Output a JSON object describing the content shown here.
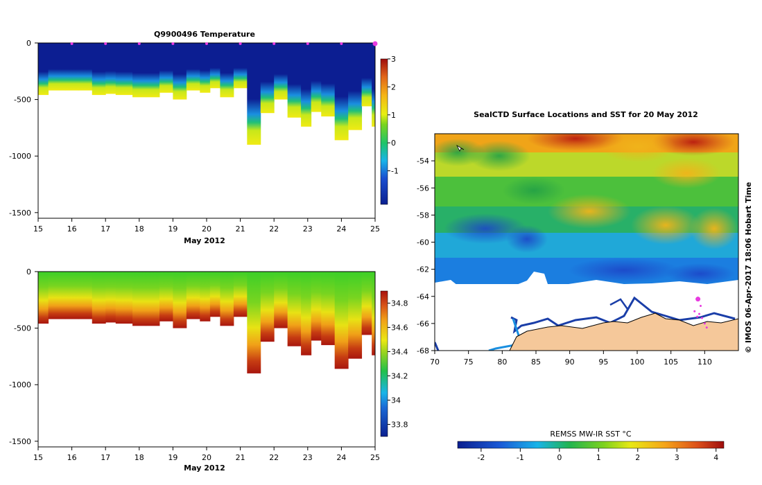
{
  "chart_data": [
    {
      "type": "heatmap",
      "id": "temperature",
      "title": "Q9900496  Temperature",
      "xlabel": "May 2012",
      "ylabel": "",
      "xlim": [
        15,
        25
      ],
      "ylim": [
        -1550,
        0
      ],
      "xticks": [
        "15",
        "16",
        "17",
        "18",
        "19",
        "20",
        "21",
        "22",
        "23",
        "24",
        "25"
      ],
      "yticks": [
        {
          "value": 0,
          "label": "0"
        },
        {
          "value": -500,
          "label": "-500"
        },
        {
          "value": -1000,
          "label": "-1000"
        },
        {
          "value": -1500,
          "label": "-1500"
        }
      ],
      "colorbar": {
        "min": -2.2,
        "max": 3,
        "ticks": [
          "3",
          "2",
          "1",
          "0",
          "-1"
        ],
        "tick_values": [
          3,
          2,
          1,
          0,
          -1
        ]
      },
      "dive_markers_x": [
        16,
        17,
        18,
        19,
        20,
        21,
        22,
        23,
        24,
        25
      ],
      "profiles": [
        {
          "x": 15.0,
          "depth": 460
        },
        {
          "x": 15.3,
          "depth": 420
        },
        {
          "x": 15.8,
          "depth": 420
        },
        {
          "x": 16.2,
          "depth": 420
        },
        {
          "x": 16.6,
          "depth": 460
        },
        {
          "x": 17.0,
          "depth": 450
        },
        {
          "x": 17.3,
          "depth": 460
        },
        {
          "x": 17.8,
          "depth": 480
        },
        {
          "x": 18.2,
          "depth": 480
        },
        {
          "x": 18.6,
          "depth": 440
        },
        {
          "x": 19.0,
          "depth": 500
        },
        {
          "x": 19.4,
          "depth": 420
        },
        {
          "x": 19.8,
          "depth": 440
        },
        {
          "x": 20.1,
          "depth": 400
        },
        {
          "x": 20.4,
          "depth": 480
        },
        {
          "x": 20.8,
          "depth": 400
        },
        {
          "x": 21.2,
          "depth": 900
        },
        {
          "x": 21.6,
          "depth": 620
        },
        {
          "x": 22.0,
          "depth": 500
        },
        {
          "x": 22.4,
          "depth": 660
        },
        {
          "x": 22.8,
          "depth": 740
        },
        {
          "x": 23.1,
          "depth": 610
        },
        {
          "x": 23.4,
          "depth": 650
        },
        {
          "x": 23.8,
          "depth": 860
        },
        {
          "x": 24.2,
          "depth": 770
        },
        {
          "x": 24.6,
          "depth": 560
        },
        {
          "x": 24.9,
          "depth": 740
        }
      ]
    },
    {
      "type": "heatmap",
      "id": "salinity",
      "title": "",
      "xlabel": "May 2012",
      "ylabel": "",
      "xlim": [
        15,
        25
      ],
      "ylim": [
        -1550,
        0
      ],
      "xticks": [
        "15",
        "16",
        "17",
        "18",
        "19",
        "20",
        "21",
        "22",
        "23",
        "24",
        "25"
      ],
      "yticks": [
        {
          "value": 0,
          "label": "0"
        },
        {
          "value": -500,
          "label": "-500"
        },
        {
          "value": -1000,
          "label": "-1000"
        },
        {
          "value": -1500,
          "label": "-1500"
        }
      ],
      "colorbar": {
        "min": 33.7,
        "max": 34.9,
        "ticks": [
          "34.8",
          "34.6",
          "34.4",
          "34.2",
          "34",
          "33.8"
        ],
        "tick_values": [
          34.8,
          34.6,
          34.4,
          34.2,
          34,
          33.8
        ]
      }
    },
    {
      "type": "heatmap",
      "id": "sst_map",
      "title": "SealCTD Surface Locations and SST for 20 May 2012",
      "xlim": [
        70,
        115
      ],
      "ylim": [
        -68,
        -52
      ],
      "xticks": [
        "70",
        "75",
        "80",
        "85",
        "90",
        "95",
        "100",
        "105",
        "110"
      ],
      "yticks": [
        "-54",
        "-56",
        "-58",
        "-60",
        "-62",
        "-64",
        "-66",
        "-68"
      ],
      "colorbar": {
        "label": "REMSS MW-IR SST °C",
        "min": -2.6,
        "max": 4.2,
        "ticks": [
          "-2",
          "-1",
          "0",
          "1",
          "2",
          "3",
          "4"
        ]
      },
      "locations": [
        {
          "lon": 109,
          "lat": -65
        },
        {
          "lon": 110,
          "lat": -66.3
        }
      ],
      "credit": "© IMOS 06-Apr-2017 18:06 Hobart Time"
    }
  ]
}
